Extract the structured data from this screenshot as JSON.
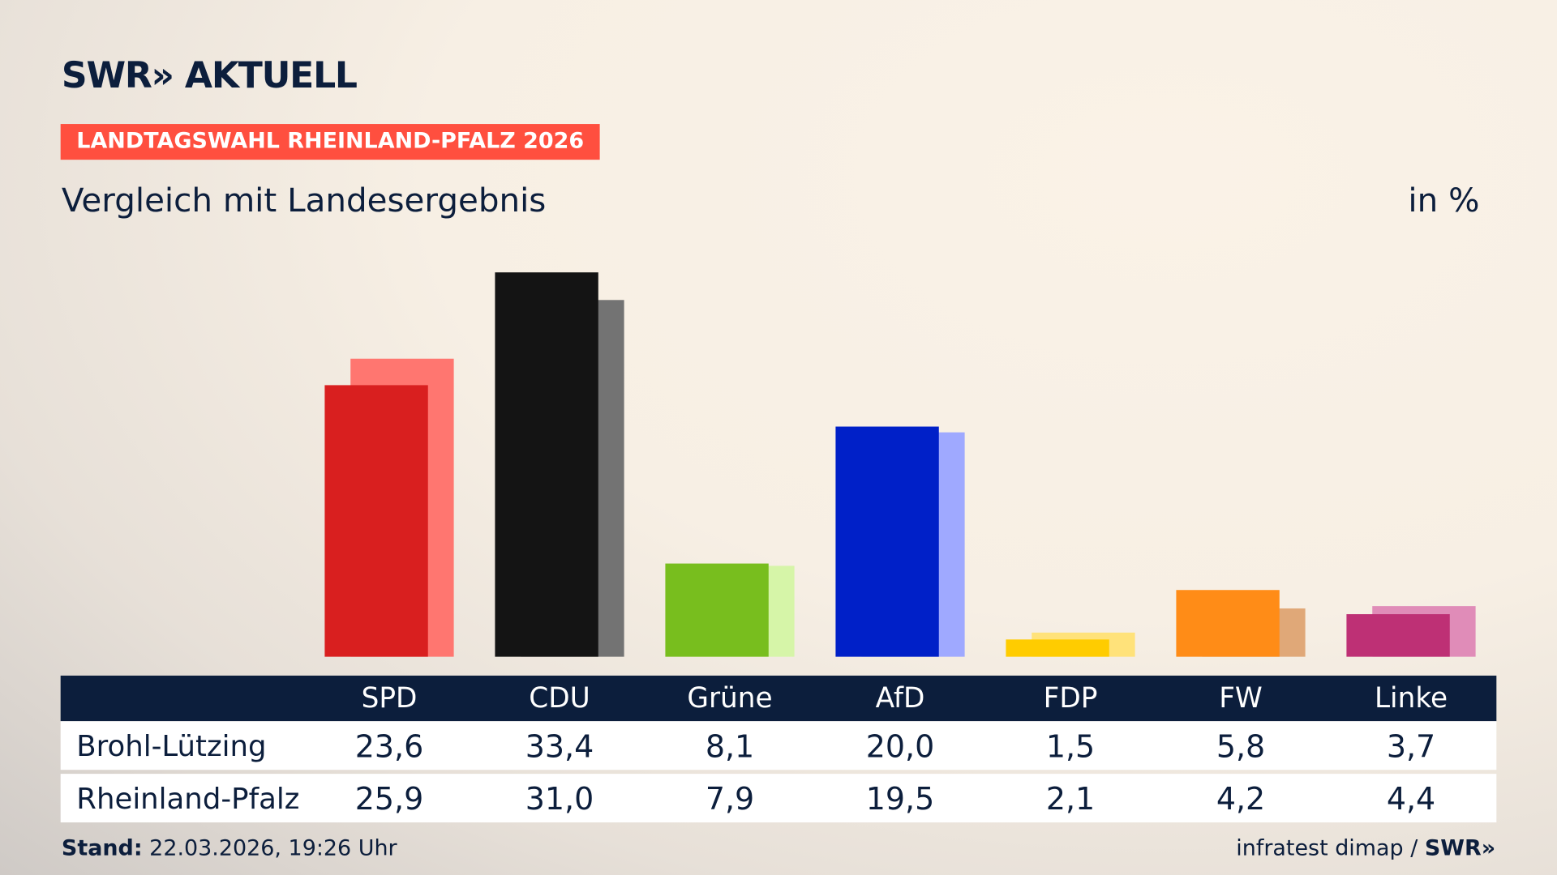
{
  "brand": {
    "logo": "SWR» AKTUELL"
  },
  "badge": "LANDTAGSWAHL RHEINLAND-PFALZ 2026",
  "subtitle": "Vergleich mit Landesergebnis",
  "unit": "in %",
  "footer": {
    "stand_label": "Stand:",
    "stand_value": " 22.03.2026, 19:26 Uhr",
    "source": "infratest dimap / ",
    "source_logo": "SWR»"
  },
  "chart_data": {
    "type": "bar",
    "categories": [
      "SPD",
      "CDU",
      "Grüne",
      "AfD",
      "FDP",
      "FW",
      "Linke"
    ],
    "series": [
      {
        "name": "Brohl-Lützing",
        "values": [
          23.6,
          33.4,
          8.1,
          20.0,
          1.5,
          5.8,
          3.7
        ],
        "labels": [
          "23,6",
          "33,4",
          "8,1",
          "20,0",
          "1,5",
          "5,8",
          "3,7"
        ],
        "colors": [
          "#d91f1f",
          "#141414",
          "#78be1e",
          "#0020c8",
          "#ffcc00",
          "#ff8c17",
          "#be3075"
        ]
      },
      {
        "name": "Rheinland-Pfalz",
        "values": [
          25.9,
          31.0,
          7.9,
          19.5,
          2.1,
          4.2,
          4.4
        ],
        "labels": [
          "25,9",
          "31,0",
          "7,9",
          "19,5",
          "2,1",
          "4,2",
          "4,4"
        ],
        "colors": [
          "#ff7670",
          "#737373",
          "#d6f5a8",
          "#9fa9ff",
          "#ffe27a",
          "#e0a878",
          "#e08cb8"
        ]
      }
    ],
    "ylim": [
      0,
      35
    ],
    "grid": false
  }
}
